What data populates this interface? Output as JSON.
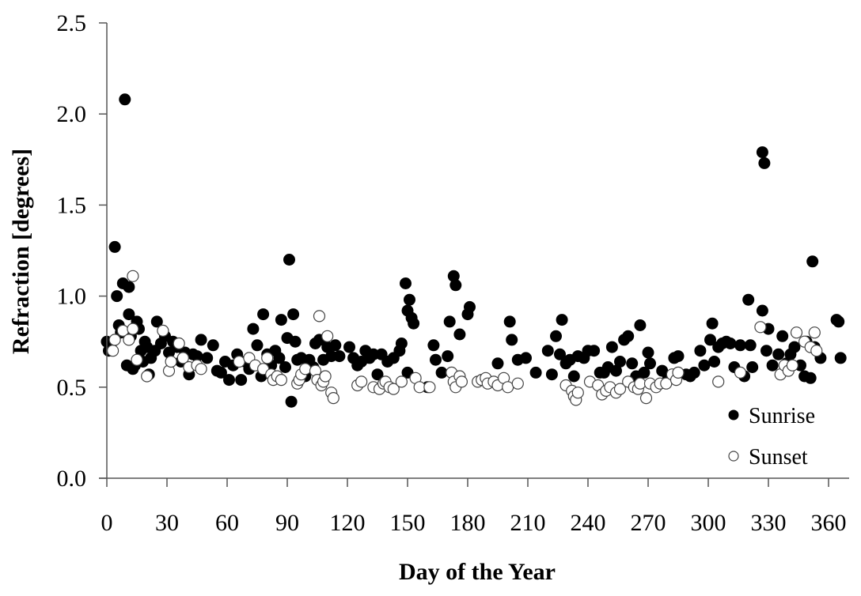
{
  "chart_data": {
    "type": "scatter",
    "title": "",
    "xlabel": "Day of the Year",
    "ylabel": "Refraction [degrees]",
    "xlim": [
      0,
      370
    ],
    "ylim": [
      0,
      2.5
    ],
    "xticks": [
      0,
      30,
      60,
      90,
      120,
      150,
      180,
      210,
      240,
      270,
      300,
      330,
      360
    ],
    "xtick_labels": [
      "0",
      "30",
      "60",
      "90",
      "120",
      "150",
      "180",
      "210",
      "240",
      "270",
      "300",
      "330",
      "360"
    ],
    "yticks": [
      0,
      0.5,
      1.0,
      1.5,
      2.0,
      2.5
    ],
    "ytick_labels": [
      "0.0",
      "0.5",
      "1.0",
      "1.5",
      "2.0",
      "2.5"
    ],
    "grid": false,
    "legend_position": "lower right inside",
    "series": [
      {
        "name": "Sunrise",
        "marker": "filled-circle",
        "color": "#000000",
        "points": [
          [
            0,
            0.75
          ],
          [
            1,
            0.7
          ],
          [
            2,
            0.72
          ],
          [
            4,
            1.27
          ],
          [
            5,
            1.0
          ],
          [
            6,
            0.84
          ],
          [
            7,
            0.8
          ],
          [
            8,
            1.07
          ],
          [
            9,
            2.08
          ],
          [
            10,
            0.62
          ],
          [
            11,
            1.05
          ],
          [
            11,
            0.9
          ],
          [
            12,
            0.78
          ],
          [
            13,
            0.6
          ],
          [
            14,
            0.62
          ],
          [
            15,
            0.86
          ],
          [
            16,
            0.82
          ],
          [
            17,
            0.7
          ],
          [
            18,
            0.64
          ],
          [
            19,
            0.75
          ],
          [
            20,
            0.72
          ],
          [
            21,
            0.57
          ],
          [
            22,
            0.66
          ],
          [
            24,
            0.7
          ],
          [
            25,
            0.86
          ],
          [
            27,
            0.74
          ],
          [
            29,
            0.78
          ],
          [
            31,
            0.69
          ],
          [
            33,
            0.75
          ],
          [
            35,
            0.72
          ],
          [
            37,
            0.64
          ],
          [
            39,
            0.69
          ],
          [
            41,
            0.57
          ],
          [
            43,
            0.68
          ],
          [
            45,
            0.67
          ],
          [
            47,
            0.76
          ],
          [
            50,
            0.66
          ],
          [
            53,
            0.73
          ],
          [
            55,
            0.59
          ],
          [
            57,
            0.58
          ],
          [
            59,
            0.64
          ],
          [
            61,
            0.54
          ],
          [
            63,
            0.62
          ],
          [
            65,
            0.68
          ],
          [
            67,
            0.54
          ],
          [
            69,
            0.64
          ],
          [
            71,
            0.6
          ],
          [
            73,
            0.82
          ],
          [
            75,
            0.73
          ],
          [
            77,
            0.56
          ],
          [
            78,
            0.9
          ],
          [
            80,
            0.68
          ],
          [
            82,
            0.62
          ],
          [
            84,
            0.7
          ],
          [
            86,
            0.66
          ],
          [
            87,
            0.87
          ],
          [
            89,
            0.61
          ],
          [
            90,
            0.77
          ],
          [
            91,
            1.2
          ],
          [
            92,
            0.42
          ],
          [
            93,
            0.9
          ],
          [
            94,
            0.75
          ],
          [
            95,
            0.65
          ],
          [
            97,
            0.66
          ],
          [
            99,
            0.56
          ],
          [
            101,
            0.65
          ],
          [
            103,
            0.61
          ],
          [
            104,
            0.74
          ],
          [
            106,
            0.76
          ],
          [
            108,
            0.65
          ],
          [
            110,
            0.72
          ],
          [
            112,
            0.67
          ],
          [
            114,
            0.73
          ],
          [
            116,
            0.67
          ],
          [
            121,
            0.72
          ],
          [
            123,
            0.66
          ],
          [
            125,
            0.62
          ],
          [
            127,
            0.64
          ],
          [
            129,
            0.7
          ],
          [
            131,
            0.66
          ],
          [
            133,
            0.68
          ],
          [
            135,
            0.57
          ],
          [
            137,
            0.68
          ],
          [
            140,
            0.64
          ],
          [
            143,
            0.66
          ],
          [
            146,
            0.7
          ],
          [
            147,
            0.74
          ],
          [
            149,
            1.07
          ],
          [
            150,
            0.92
          ],
          [
            151,
            0.98
          ],
          [
            152,
            0.88
          ],
          [
            153,
            0.85
          ],
          [
            150,
            0.58
          ],
          [
            160,
            0.5
          ],
          [
            163,
            0.73
          ],
          [
            164,
            0.65
          ],
          [
            167,
            0.58
          ],
          [
            170,
            0.67
          ],
          [
            171,
            0.86
          ],
          [
            173,
            1.11
          ],
          [
            174,
            1.06
          ],
          [
            176,
            0.79
          ],
          [
            180,
            0.9
          ],
          [
            181,
            0.94
          ],
          [
            195,
            0.63
          ],
          [
            201,
            0.86
          ],
          [
            202,
            0.76
          ],
          [
            205,
            0.65
          ],
          [
            209,
            0.66
          ],
          [
            214,
            0.58
          ],
          [
            220,
            0.7
          ],
          [
            222,
            0.57
          ],
          [
            224,
            0.78
          ],
          [
            226,
            0.68
          ],
          [
            227,
            0.87
          ],
          [
            229,
            0.63
          ],
          [
            231,
            0.65
          ],
          [
            233,
            0.56
          ],
          [
            235,
            0.67
          ],
          [
            238,
            0.66
          ],
          [
            240,
            0.7
          ],
          [
            243,
            0.7
          ],
          [
            246,
            0.58
          ],
          [
            248,
            0.58
          ],
          [
            250,
            0.61
          ],
          [
            252,
            0.72
          ],
          [
            254,
            0.59
          ],
          [
            256,
            0.64
          ],
          [
            258,
            0.76
          ],
          [
            260,
            0.78
          ],
          [
            262,
            0.63
          ],
          [
            264,
            0.56
          ],
          [
            266,
            0.84
          ],
          [
            268,
            0.58
          ],
          [
            270,
            0.69
          ],
          [
            271,
            0.63
          ],
          [
            277,
            0.59
          ],
          [
            280,
            0.56
          ],
          [
            283,
            0.66
          ],
          [
            285,
            0.67
          ],
          [
            289,
            0.57
          ],
          [
            291,
            0.56
          ],
          [
            293,
            0.58
          ],
          [
            296,
            0.7
          ],
          [
            298,
            0.62
          ],
          [
            301,
            0.76
          ],
          [
            302,
            0.85
          ],
          [
            303,
            0.64
          ],
          [
            305,
            0.72
          ],
          [
            307,
            0.74
          ],
          [
            309,
            0.75
          ],
          [
            311,
            0.74
          ],
          [
            313,
            0.61
          ],
          [
            316,
            0.73
          ],
          [
            318,
            0.56
          ],
          [
            320,
            0.98
          ],
          [
            321,
            0.73
          ],
          [
            322,
            0.61
          ],
          [
            327,
            1.79
          ],
          [
            328,
            1.73
          ],
          [
            327,
            0.92
          ],
          [
            329,
            0.7
          ],
          [
            330,
            0.82
          ],
          [
            332,
            0.62
          ],
          [
            335,
            0.68
          ],
          [
            337,
            0.78
          ],
          [
            339,
            0.63
          ],
          [
            341,
            0.68
          ],
          [
            343,
            0.72
          ],
          [
            346,
            0.62
          ],
          [
            348,
            0.56
          ],
          [
            349,
            0.75
          ],
          [
            351,
            0.55
          ],
          [
            352,
            1.19
          ],
          [
            353,
            0.72
          ],
          [
            356,
            0.66
          ],
          [
            364,
            0.87
          ],
          [
            365,
            0.86
          ],
          [
            366,
            0.66
          ]
        ]
      },
      {
        "name": "Sunset",
        "marker": "open-circle",
        "color": "#ffffff",
        "points": [
          [
            3,
            0.7
          ],
          [
            4,
            0.76
          ],
          [
            8,
            0.81
          ],
          [
            11,
            0.76
          ],
          [
            13,
            1.11
          ],
          [
            13,
            0.82
          ],
          [
            15,
            0.65
          ],
          [
            20,
            0.56
          ],
          [
            28,
            0.81
          ],
          [
            31,
            0.59
          ],
          [
            32,
            0.64
          ],
          [
            36,
            0.74
          ],
          [
            38,
            0.66
          ],
          [
            41,
            0.61
          ],
          [
            45,
            0.62
          ],
          [
            47,
            0.6
          ],
          [
            66,
            0.64
          ],
          [
            71,
            0.66
          ],
          [
            74,
            0.62
          ],
          [
            78,
            0.6
          ],
          [
            80,
            0.66
          ],
          [
            82,
            0.57
          ],
          [
            83,
            0.54
          ],
          [
            85,
            0.56
          ],
          [
            87,
            0.54
          ],
          [
            95,
            0.52
          ],
          [
            96,
            0.54
          ],
          [
            97,
            0.57
          ],
          [
            99,
            0.6
          ],
          [
            104,
            0.59
          ],
          [
            105,
            0.54
          ],
          [
            106,
            0.89
          ],
          [
            107,
            0.51
          ],
          [
            108,
            0.53
          ],
          [
            109,
            0.56
          ],
          [
            110,
            0.78
          ],
          [
            112,
            0.47
          ],
          [
            113,
            0.44
          ],
          [
            125,
            0.51
          ],
          [
            127,
            0.53
          ],
          [
            133,
            0.5
          ],
          [
            136,
            0.49
          ],
          [
            138,
            0.52
          ],
          [
            139,
            0.53
          ],
          [
            141,
            0.5
          ],
          [
            143,
            0.49
          ],
          [
            147,
            0.53
          ],
          [
            154,
            0.55
          ],
          [
            156,
            0.5
          ],
          [
            161,
            0.5
          ],
          [
            172,
            0.58
          ],
          [
            173,
            0.53
          ],
          [
            174,
            0.5
          ],
          [
            176,
            0.56
          ],
          [
            177,
            0.53
          ],
          [
            185,
            0.53
          ],
          [
            187,
            0.54
          ],
          [
            189,
            0.55
          ],
          [
            190,
            0.52
          ],
          [
            193,
            0.53
          ],
          [
            195,
            0.51
          ],
          [
            198,
            0.55
          ],
          [
            200,
            0.5
          ],
          [
            205,
            0.52
          ],
          [
            229,
            0.51
          ],
          [
            232,
            0.48
          ],
          [
            233,
            0.45
          ],
          [
            234,
            0.43
          ],
          [
            235,
            0.47
          ],
          [
            241,
            0.53
          ],
          [
            245,
            0.51
          ],
          [
            247,
            0.46
          ],
          [
            249,
            0.48
          ],
          [
            251,
            0.5
          ],
          [
            254,
            0.47
          ],
          [
            256,
            0.49
          ],
          [
            260,
            0.53
          ],
          [
            263,
            0.5
          ],
          [
            265,
            0.49
          ],
          [
            266,
            0.52
          ],
          [
            269,
            0.44
          ],
          [
            271,
            0.52
          ],
          [
            274,
            0.5
          ],
          [
            276,
            0.52
          ],
          [
            279,
            0.52
          ],
          [
            282,
            0.57
          ],
          [
            284,
            0.54
          ],
          [
            285,
            0.58
          ],
          [
            305,
            0.53
          ],
          [
            316,
            0.58
          ],
          [
            326,
            0.83
          ],
          [
            336,
            0.57
          ],
          [
            338,
            0.62
          ],
          [
            340,
            0.59
          ],
          [
            342,
            0.62
          ],
          [
            344,
            0.8
          ],
          [
            348,
            0.75
          ],
          [
            351,
            0.72
          ],
          [
            353,
            0.8
          ],
          [
            354,
            0.7
          ]
        ]
      }
    ]
  },
  "legend": {
    "items": [
      {
        "label": "Sunrise"
      },
      {
        "label": "Sunset"
      }
    ]
  },
  "axes": {
    "x_title": "Day of the Year",
    "y_title": "Refraction [degrees]"
  }
}
